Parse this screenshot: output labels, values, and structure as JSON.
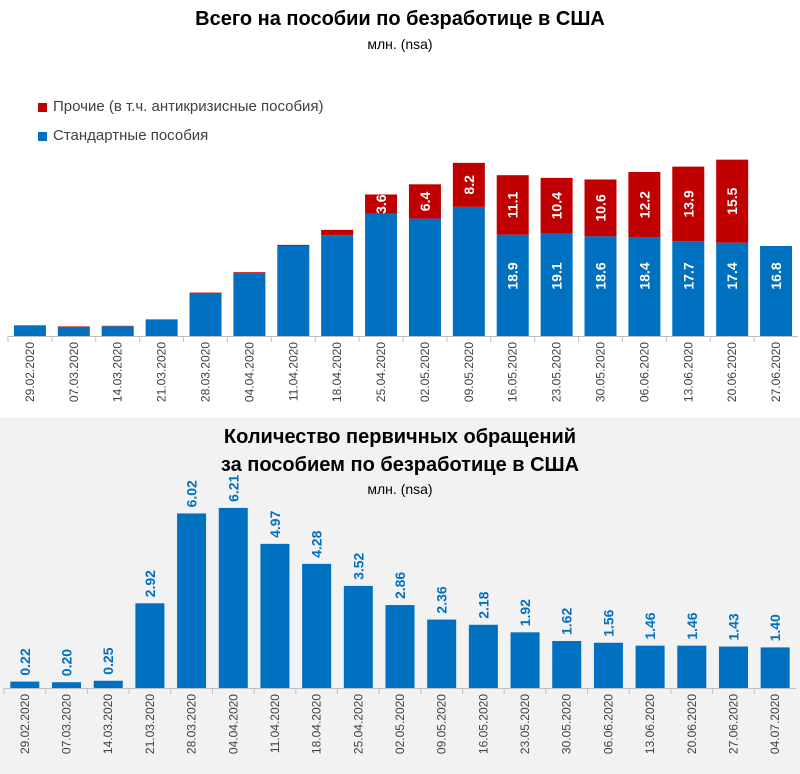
{
  "chart_data": [
    {
      "type": "bar",
      "stacked": true,
      "title": "Всего на пособии по безработице в США",
      "subtitle": "млн. (nsa)",
      "categories": [
        "29.02.2020",
        "07.03.2020",
        "14.03.2020",
        "21.03.2020",
        "28.03.2020",
        "04.04.2020",
        "11.04.2020",
        "18.04.2020",
        "25.04.2020",
        "02.05.2020",
        "09.05.2020",
        "16.05.2020",
        "23.05.2020",
        "30.05.2020",
        "06.06.2020",
        "13.06.2020",
        "20.06.2020",
        "27.06.2020"
      ],
      "series": [
        {
          "name": "Стандартные пособия",
          "color": "#0070c0",
          "values": [
            1.9,
            1.7,
            1.8,
            3.0,
            7.9,
            11.7,
            16.8,
            18.8,
            22.8,
            21.9,
            24.1,
            18.9,
            19.1,
            18.6,
            18.4,
            17.7,
            17.4,
            16.8
          ],
          "labels": [
            "",
            "",
            "",
            "",
            "",
            "",
            "",
            "",
            "",
            "",
            "",
            "18.9",
            "19.1",
            "18.6",
            "18.4",
            "17.7",
            "17.4",
            "16.8"
          ]
        },
        {
          "name": "Прочие (в т.ч. антикризисные пособия)",
          "color": "#c00000",
          "values": [
            0.1,
            0.1,
            0.1,
            0.1,
            0.2,
            0.2,
            0.2,
            1.0,
            3.6,
            6.4,
            8.2,
            11.1,
            10.4,
            10.6,
            12.2,
            13.9,
            15.5,
            0
          ],
          "labels": [
            "",
            "",
            "",
            "",
            "",
            "",
            "",
            "",
            "3.6",
            "6.4",
            "8.2",
            "11.1",
            "10.4",
            "10.6",
            "12.2",
            "13.9",
            "15.5",
            ""
          ]
        }
      ],
      "legend": "top-left",
      "grid": false
    },
    {
      "type": "bar",
      "title": [
        "Количество первичных обращений",
        "за пособием по безработице в США"
      ],
      "subtitle": "млн. (nsa)",
      "categories": [
        "29.02.2020",
        "07.03.2020",
        "14.03.2020",
        "21.03.2020",
        "28.03.2020",
        "04.04.2020",
        "11.04.2020",
        "18.04.2020",
        "25.04.2020",
        "02.05.2020",
        "09.05.2020",
        "16.05.2020",
        "23.05.2020",
        "30.05.2020",
        "06.06.2020",
        "13.06.2020",
        "20.06.2020",
        "27.06.2020",
        "04.07.2020"
      ],
      "values": [
        0.22,
        0.2,
        0.25,
        2.92,
        6.02,
        6.21,
        4.97,
        4.28,
        3.52,
        2.86,
        2.36,
        2.18,
        1.92,
        1.62,
        1.56,
        1.46,
        1.46,
        1.43,
        1.4
      ],
      "labels": [
        "0.22",
        "0.20",
        "0.25",
        "2.92",
        "6.02",
        "6.21",
        "4.97",
        "4.28",
        "3.52",
        "2.86",
        "2.36",
        "2.18",
        "1.92",
        "1.62",
        "1.56",
        "1.46",
        "1.46",
        "1.43",
        "1.40"
      ],
      "color": "#0070c0",
      "grid": false
    }
  ]
}
